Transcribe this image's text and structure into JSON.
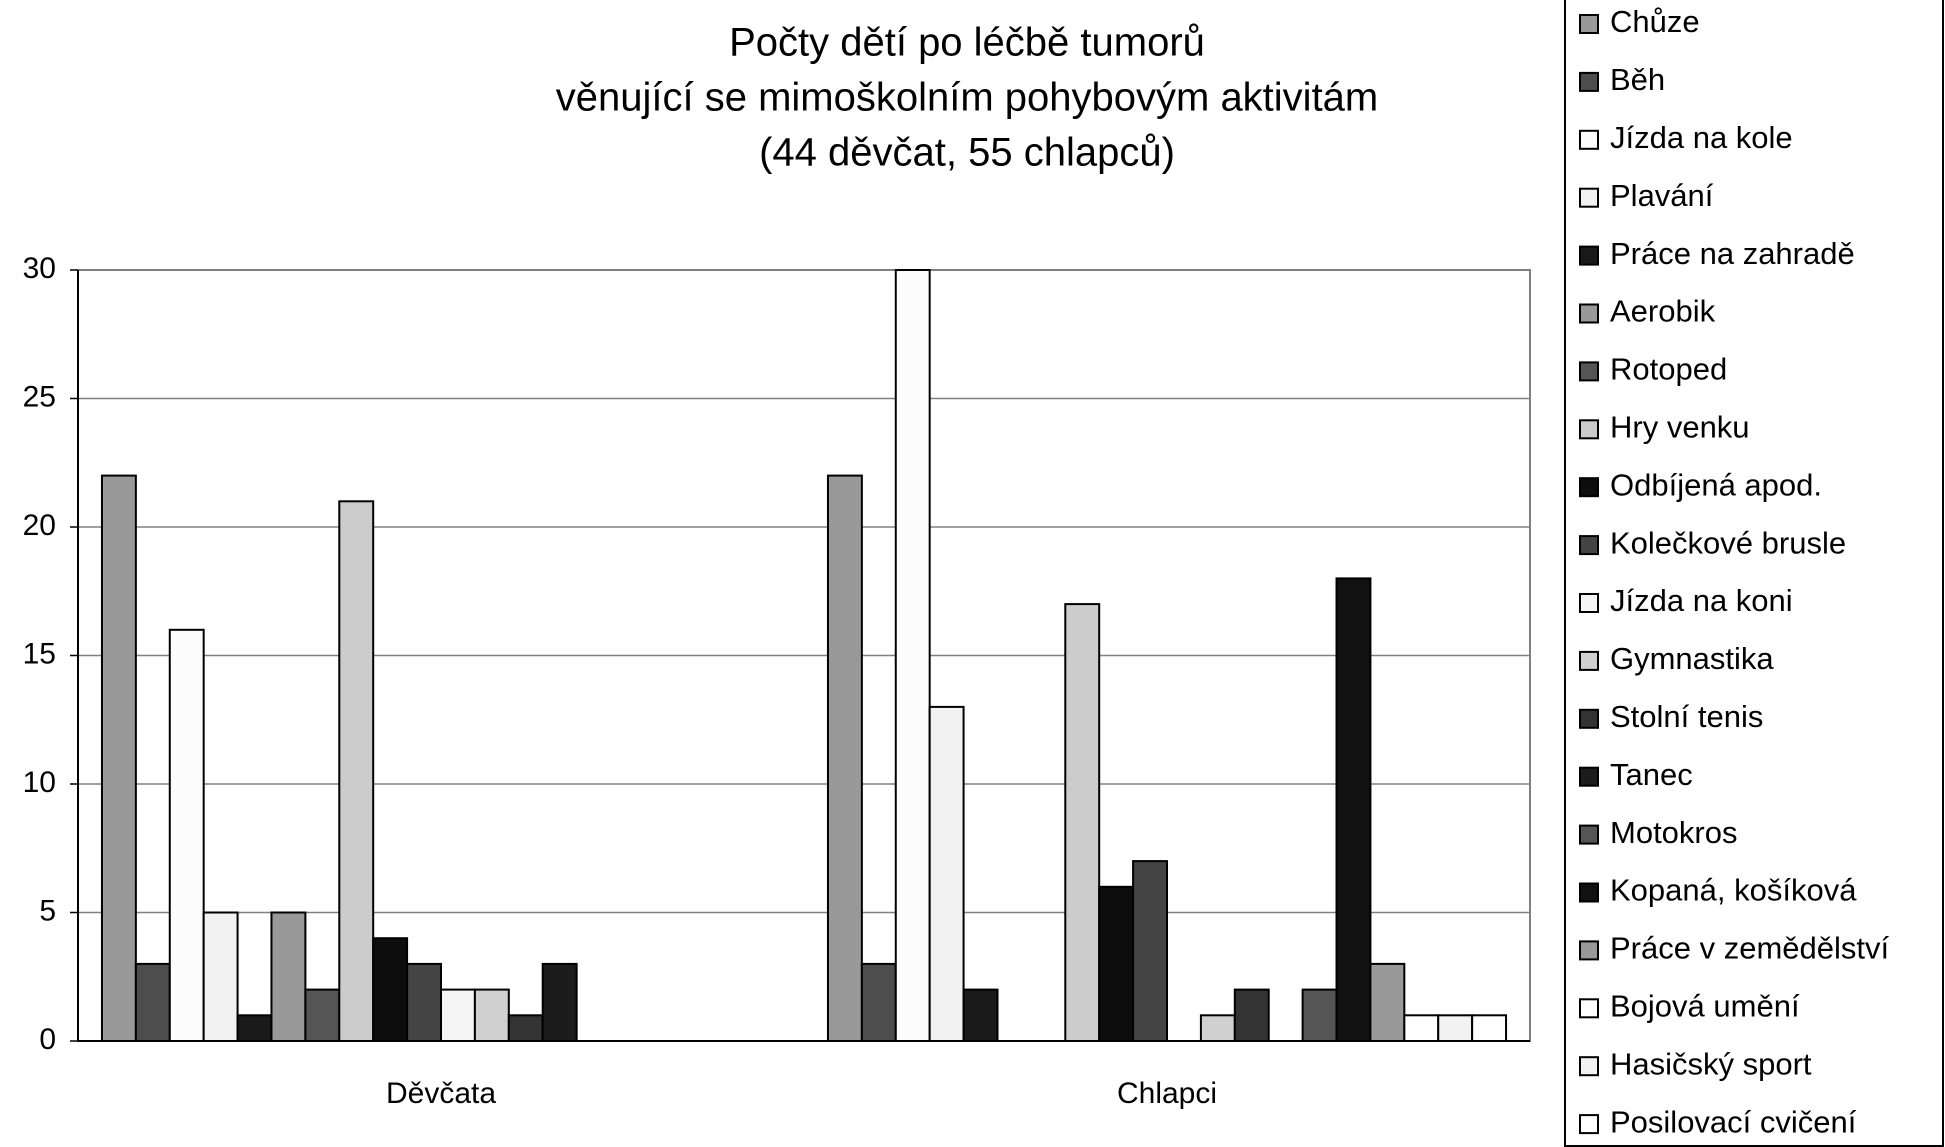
{
  "chart_data": {
    "type": "bar",
    "title": [
      "Počty dětí po léčbě tumorů",
      "věnující se mimoškolním pohybovým aktivitám",
      "(44 děvčat, 55 chlapců)"
    ],
    "categories": [
      "Děvčata",
      "Chlapci"
    ],
    "ylim": [
      0,
      30
    ],
    "yticks": [
      0,
      5,
      10,
      15,
      20,
      25,
      30
    ],
    "grid": true,
    "legend": "right",
    "series": [
      {
        "name": "Chůze",
        "color": "#999999",
        "values": [
          22,
          22
        ]
      },
      {
        "name": "Běh",
        "color": "#4d4d4d",
        "values": [
          3,
          3
        ]
      },
      {
        "name": "Jízda na kole",
        "color": "#fcfcfc",
        "values": [
          16,
          30
        ]
      },
      {
        "name": "Plavání",
        "color": "#f2f2f2",
        "values": [
          5,
          13
        ]
      },
      {
        "name": "Práce na zahradě",
        "color": "#1a1a1a",
        "values": [
          1,
          2
        ]
      },
      {
        "name": "Aerobik",
        "color": "#999999",
        "values": [
          5,
          0
        ]
      },
      {
        "name": "Rotoped",
        "color": "#555555",
        "values": [
          2,
          0
        ]
      },
      {
        "name": "Hry venku",
        "color": "#cccccc",
        "values": [
          21,
          17
        ]
      },
      {
        "name": "Odbíjená apod.",
        "color": "#0d0d0d",
        "values": [
          4,
          6
        ]
      },
      {
        "name": "Kolečkové brusle",
        "color": "#444444",
        "values": [
          3,
          7
        ]
      },
      {
        "name": "Jízda na koni",
        "color": "#f5f5f5",
        "values": [
          2,
          0
        ]
      },
      {
        "name": "Gymnastika",
        "color": "#d0d0d0",
        "values": [
          2,
          1
        ]
      },
      {
        "name": "Stolní tenis",
        "color": "#333333",
        "values": [
          1,
          2
        ]
      },
      {
        "name": "Tanec",
        "color": "#1c1c1c",
        "values": [
          3,
          0
        ]
      },
      {
        "name": "Motokros",
        "color": "#555555",
        "values": [
          0,
          2
        ]
      },
      {
        "name": "Kopaná, košíková",
        "color": "#111111",
        "values": [
          0,
          18
        ]
      },
      {
        "name": "Práce v zemědělství",
        "color": "#999999",
        "values": [
          0,
          3
        ]
      },
      {
        "name": "Bojová umění",
        "color": "#ffffff",
        "values": [
          0,
          1
        ]
      },
      {
        "name": "Hasičský sport",
        "color": "#f2f2f2",
        "values": [
          0,
          1
        ]
      },
      {
        "name": "Posilovací cvičení",
        "color": "#ffffff",
        "values": [
          0,
          1
        ]
      }
    ]
  }
}
